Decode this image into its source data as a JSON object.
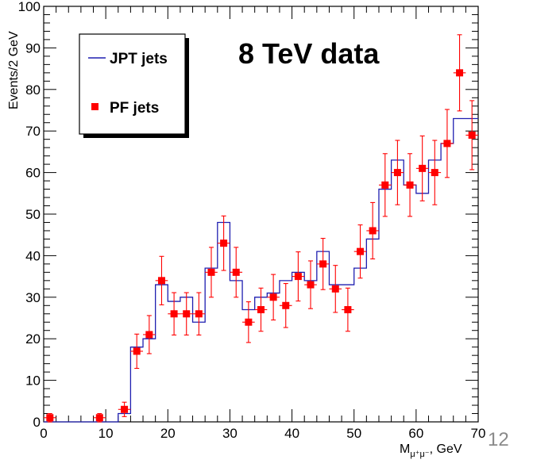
{
  "chart_data": {
    "type": "scatter",
    "xlabel_main": "M",
    "xlabel_sub": "μ⁺μ⁻",
    "xlabel_tail": ", GeV",
    "ylabel": "Events/2 GeV",
    "xlim": [
      0,
      70
    ],
    "ylim": [
      0,
      100
    ],
    "x_ticks": [
      0,
      10,
      20,
      30,
      40,
      50,
      60,
      70
    ],
    "y_ticks": [
      0,
      10,
      20,
      30,
      40,
      50,
      60,
      70,
      80,
      90,
      100
    ],
    "grid": false,
    "legend_position": "top-left",
    "annotation": "8 TeV data",
    "page_number": "12",
    "series": [
      {
        "name": "JPT jets",
        "kind": "step",
        "color": "#1f1fb0",
        "bin_width": 2,
        "x": [
          1,
          3,
          5,
          7,
          9,
          11,
          13,
          15,
          17,
          19,
          21,
          23,
          25,
          27,
          29,
          31,
          33,
          35,
          37,
          39,
          41,
          43,
          45,
          47,
          49,
          51,
          53,
          55,
          57,
          59,
          61,
          63,
          65,
          67,
          69
        ],
        "values": [
          0,
          0,
          0,
          0,
          0,
          0,
          2,
          18,
          20,
          33,
          29,
          30,
          24,
          37,
          48,
          34,
          27,
          30,
          31,
          34,
          36,
          34,
          41,
          33,
          33,
          37,
          44,
          56,
          63,
          57,
          55,
          63,
          67,
          73,
          73
        ]
      },
      {
        "name": "PF jets",
        "kind": "points",
        "color": "#ff0000",
        "x": [
          1,
          9,
          13,
          15,
          17,
          19,
          21,
          23,
          25,
          27,
          29,
          31,
          33,
          35,
          37,
          39,
          41,
          43,
          45,
          47,
          49,
          51,
          53,
          55,
          57,
          59,
          61,
          63,
          65,
          67,
          69
        ],
        "values": [
          1,
          1,
          3,
          17,
          21,
          34,
          26,
          26,
          26,
          36,
          43,
          36,
          24,
          27,
          30,
          28,
          35,
          33,
          38,
          32,
          27,
          41,
          46,
          57,
          60,
          57,
          61,
          60,
          67,
          84,
          69
        ],
        "x_err": 1
      }
    ]
  }
}
